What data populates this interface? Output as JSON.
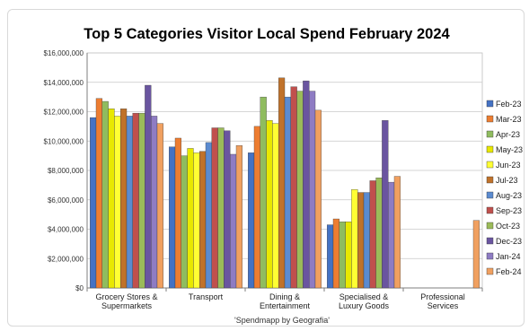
{
  "chart_data": {
    "type": "bar",
    "title": "Top 5 Categories Visitor Local Spend February 2024",
    "caption": "'Spendmapp by Geografia'",
    "ylim": [
      0,
      16000000
    ],
    "y_ticks": [
      "$0",
      "$2,000,000",
      "$4,000,000",
      "$6,000,000",
      "$8,000,000",
      "$10,000,000",
      "$12,000,000",
      "$14,000,000",
      "$16,000,000"
    ],
    "y_tick_values": [
      0,
      2000000,
      4000000,
      6000000,
      8000000,
      10000000,
      12000000,
      14000000,
      16000000
    ],
    "grid": true,
    "legend_position": "right",
    "categories": [
      [
        "Grocery Stores &",
        "Supermarkets"
      ],
      [
        "Transport"
      ],
      [
        "Dining &",
        "Entertainment"
      ],
      [
        "Specialised &",
        "Luxury Goods"
      ],
      [
        "Professional",
        "Services"
      ]
    ],
    "series": [
      {
        "name": "Feb-23",
        "color": "#4472C4",
        "values": [
          11600000,
          9600000,
          9200000,
          4300000,
          null
        ]
      },
      {
        "name": "Mar-23",
        "color": "#ED7D31",
        "values": [
          12900000,
          10200000,
          11000000,
          4700000,
          null
        ]
      },
      {
        "name": "Apr-23",
        "color": "#8FBC5F",
        "values": [
          12700000,
          9000000,
          13000000,
          4500000,
          null
        ]
      },
      {
        "name": "May-23",
        "color": "#E8E800",
        "values": [
          12200000,
          9500000,
          11400000,
          4500000,
          null
        ]
      },
      {
        "name": "Jun-23",
        "color": "#FFFF33",
        "values": [
          11700000,
          9200000,
          11200000,
          6700000,
          null
        ]
      },
      {
        "name": "Jul-23",
        "color": "#C0722A",
        "values": [
          12200000,
          9300000,
          14300000,
          6500000,
          null
        ]
      },
      {
        "name": "Aug-23",
        "color": "#5B8BD0",
        "values": [
          11700000,
          9900000,
          13000000,
          6500000,
          null
        ]
      },
      {
        "name": "Sep-23",
        "color": "#C0504D",
        "values": [
          11900000,
          10900000,
          13700000,
          7300000,
          null
        ]
      },
      {
        "name": "Oct-23",
        "color": "#9BBB59",
        "values": [
          11900000,
          10900000,
          13400000,
          7500000,
          null
        ]
      },
      {
        "name": "Dec-23",
        "color": "#6A55A0",
        "values": [
          13800000,
          10700000,
          14100000,
          11400000,
          null
        ]
      },
      {
        "name": "Jan-24",
        "color": "#8E7CC3",
        "values": [
          11700000,
          9100000,
          13400000,
          7200000,
          null
        ]
      },
      {
        "name": "Feb-24",
        "color": "#F0A060",
        "values": [
          11200000,
          9700000,
          12100000,
          7600000,
          4600000
        ]
      }
    ]
  }
}
